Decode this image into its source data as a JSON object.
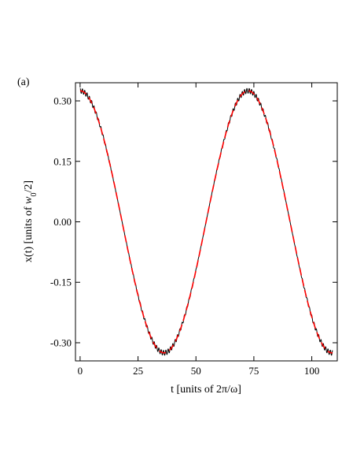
{
  "panel_label": "(a)",
  "chart_data": {
    "type": "line",
    "title": "",
    "xlabel": "t [units of 2π/ω]",
    "ylabel_parts": {
      "before": "x(t) [units of ",
      "var": "w",
      "sub": "0",
      "after": "/2]"
    },
    "xlim": [
      -2,
      111
    ],
    "ylim": [
      -0.345,
      0.345
    ],
    "xticks": [
      0,
      25,
      50,
      75,
      100
    ],
    "yticks": [
      0.3,
      0.15,
      0.0,
      -0.15,
      -0.3
    ],
    "yticklabels": [
      "0.30",
      "0.15",
      "0.00",
      "-0.15",
      "-0.30"
    ],
    "grid": false,
    "legend": "none",
    "series": [
      {
        "style": "solid",
        "color": "#000000",
        "description_values": {
          "amplitude": 0.325,
          "period": 72.5,
          "micromotion_amplitude": 0.006,
          "micromotion_period": 1.0,
          "x_start": 0,
          "x_end": 109
        }
      },
      {
        "style": "dashed",
        "color": "#ff0000",
        "description_values": {
          "amplitude": 0.325,
          "period": 72.5,
          "micromotion_amplitude": 0,
          "micromotion_period": 1.0,
          "x_start": 0,
          "x_end": 109
        }
      }
    ]
  }
}
